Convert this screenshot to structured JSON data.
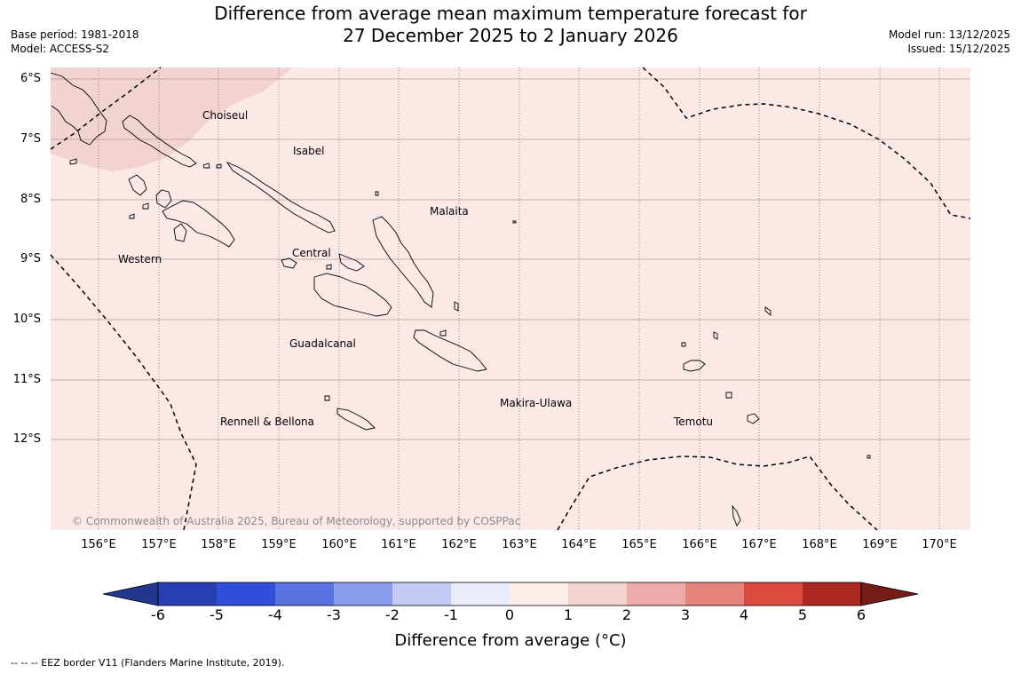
{
  "title": {
    "line1": "Difference from average mean maximum temperature forecast for",
    "line2": "27 December 2025 to 2 January 2026"
  },
  "meta_left": {
    "base_period": "Base period: 1981-2018",
    "model": "Model: ACCESS-S2"
  },
  "meta_right": {
    "model_run": "Model run: 13/12/2025",
    "issued": "Issued: 15/12/2025"
  },
  "map": {
    "lat_labels": [
      "6°S",
      "7°S",
      "8°S",
      "9°S",
      "10°S",
      "11°S",
      "12°S"
    ],
    "lon_labels": [
      "156°E",
      "157°E",
      "158°E",
      "159°E",
      "160°E",
      "161°E",
      "162°E",
      "163°E",
      "164°E",
      "165°E",
      "166°E",
      "167°E",
      "168°E",
      "169°E",
      "170°E"
    ],
    "places": [
      "Choiseul",
      "Isabel",
      "Malaita",
      "Western",
      "Central",
      "Guadalcanal",
      "Makira-Ulawa",
      "Rennell & Bellona",
      "Temotu"
    ],
    "colors": {
      "base_anomaly_0_1": "#fbe9e8",
      "anomaly_1_2": "#f2d3d0",
      "eez_border": "#000000",
      "grid": "#b09a9a"
    },
    "copyright": "© Commonwealth of Australia 2025, Bureau of Meteorology, supported by COSPPac"
  },
  "colorbar": {
    "ticks": [
      "-6",
      "-5",
      "-4",
      "-3",
      "-2",
      "-1",
      "0",
      "1",
      "2",
      "3",
      "4",
      "5",
      "6"
    ],
    "colors": [
      "#23378f",
      "#273fb2",
      "#2f4ed9",
      "#5b73e0",
      "#8a9dec",
      "#c3caf4",
      "#e9ecfb",
      "#fcecea",
      "#f2d3d0",
      "#eeaaa7",
      "#e5837b",
      "#dc4a3f",
      "#aa2820",
      "#761d17"
    ],
    "label": "Difference from average (°C)"
  },
  "footnote": "--  --  -- EEZ border V11 (Flanders Marine Institute, 2019)."
}
